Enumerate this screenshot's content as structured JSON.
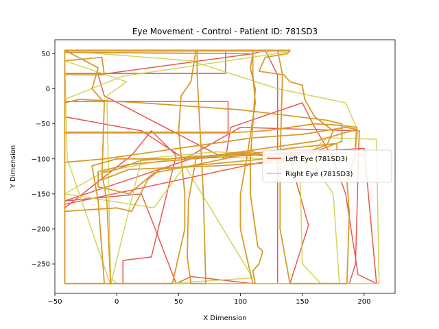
{
  "chart_data": {
    "type": "line",
    "title": "Eye Movement - Control - Patient ID: 781SD3",
    "xlabel": "X Dimension",
    "ylabel": "Y Dimension",
    "xlim": [
      -50,
      225
    ],
    "ylim": [
      -292,
      70
    ],
    "xticks": [
      -50,
      0,
      50,
      100,
      150,
      200
    ],
    "yticks": [
      50,
      0,
      -50,
      -100,
      -150,
      -200,
      -250
    ],
    "grid": false,
    "legend_position": "center-right",
    "series": [
      {
        "name": "Left Eye (781SD3)",
        "color": "#e8443a",
        "points": [
          [
            -42,
            55
          ],
          [
            88,
            55
          ],
          [
            88,
            22
          ],
          [
            -42,
            22
          ],
          [
            -42,
            -18
          ],
          [
            90,
            -18
          ],
          [
            90,
            -62
          ],
          [
            -42,
            -62
          ],
          [
            -42,
            -165
          ],
          [
            135,
            -98
          ],
          [
            140,
            -100
          ],
          [
            155,
            -195
          ],
          [
            140,
            -278
          ],
          [
            -42,
            -278
          ],
          [
            -42,
            -170
          ],
          [
            12,
            -95
          ],
          [
            28,
            -60
          ],
          [
            48,
            -95
          ],
          [
            28,
            -240
          ],
          [
            5,
            -245
          ],
          [
            5,
            -278
          ],
          [
            110,
            -278
          ],
          [
            60,
            -268
          ],
          [
            48,
            -278
          ],
          [
            30,
            -195
          ],
          [
            20,
            -150
          ],
          [
            -42,
            -160
          ],
          [
            60,
            -100
          ],
          [
            200,
            -85
          ],
          [
            210,
            -278
          ],
          [
            195,
            -265
          ],
          [
            185,
            -150
          ],
          [
            175,
            -100
          ],
          [
            160,
            -55
          ],
          [
            150,
            -20
          ],
          [
            92,
            -55
          ],
          [
            88,
            -100
          ],
          [
            -10,
            -10
          ],
          [
            -15,
            20
          ],
          [
            110,
            50
          ],
          [
            120,
            55
          ],
          [
            130,
            20
          ],
          [
            130,
            -278
          ],
          [
            188,
            -278
          ],
          [
            193,
            -250
          ],
          [
            196,
            -60
          ],
          [
            100,
            -55
          ],
          [
            55,
            -100
          ],
          [
            20,
            -60
          ],
          [
            -42,
            -40
          ]
        ]
      },
      {
        "name": "Right Eye (781SD3)",
        "color": "#cfcf45",
        "points": [
          [
            -42,
            53
          ],
          [
            140,
            53
          ],
          [
            5,
            18
          ],
          [
            -42,
            -15
          ],
          [
            -42,
            -105
          ],
          [
            -42,
            -278
          ],
          [
            165,
            -278
          ],
          [
            150,
            -250
          ],
          [
            148,
            -105
          ],
          [
            170,
            -70
          ],
          [
            210,
            -72
          ],
          [
            212,
            -278
          ],
          [
            180,
            -278
          ],
          [
            175,
            -150
          ],
          [
            160,
            -110
          ],
          [
            120,
            -100
          ],
          [
            60,
            -95
          ],
          [
            -10,
            -118
          ],
          [
            -42,
            -150
          ],
          [
            30,
            -170
          ],
          [
            55,
            -110
          ],
          [
            110,
            -270
          ],
          [
            40,
            -278
          ],
          [
            0,
            -278
          ],
          [
            -5,
            -270
          ],
          [
            -8,
            -10
          ],
          [
            8,
            10
          ],
          [
            -42,
            40
          ],
          [
            -40,
            -100
          ],
          [
            -5,
            -280
          ],
          [
            20,
            -100
          ],
          [
            80,
            -90
          ],
          [
            140,
            -95
          ],
          [
            192,
            -100
          ],
          [
            195,
            -60
          ],
          [
            185,
            -20
          ],
          [
            130,
            0
          ],
          [
            60,
            40
          ],
          [
            -42,
            54
          ]
        ]
      },
      {
        "name": "",
        "color": "#d89a28",
        "points": [
          [
            -42,
            55
          ],
          [
            140,
            55
          ],
          [
            138,
            50
          ],
          [
            120,
            45
          ],
          [
            115,
            25
          ],
          [
            135,
            20
          ],
          [
            140,
            10
          ],
          [
            150,
            5
          ],
          [
            152,
            -15
          ],
          [
            160,
            -40
          ],
          [
            175,
            -60
          ],
          [
            170,
            -80
          ],
          [
            140,
            -100
          ],
          [
            100,
            -92
          ],
          [
            60,
            -100
          ],
          [
            10,
            -108
          ],
          [
            -15,
            -118
          ],
          [
            -15,
            -140
          ],
          [
            10,
            -150
          ],
          [
            30,
            -120
          ],
          [
            60,
            -110
          ],
          [
            100,
            -95
          ],
          [
            140,
            -85
          ],
          [
            178,
            -78
          ],
          [
            178,
            -100
          ],
          [
            130,
            -105
          ],
          [
            80,
            -110
          ],
          [
            10,
            -115
          ],
          [
            -12,
            -130
          ],
          [
            -10,
            -20
          ],
          [
            -20,
            0
          ],
          [
            -15,
            30
          ],
          [
            -42,
            55
          ],
          [
            -42,
            20
          ],
          [
            -10,
            20
          ],
          [
            -12,
            45
          ],
          [
            -42,
            40
          ],
          [
            -42,
            -175
          ],
          [
            0,
            -170
          ],
          [
            12,
            -175
          ],
          [
            25,
            -130
          ],
          [
            35,
            -115
          ],
          [
            60,
            -110
          ],
          [
            120,
            -100
          ],
          [
            160,
            -90
          ],
          [
            182,
            -75
          ],
          [
            182,
            -50
          ],
          [
            170,
            -45
          ],
          [
            100,
            -30
          ],
          [
            60,
            -25
          ],
          [
            20,
            -20
          ],
          [
            -30,
            -15
          ],
          [
            -42,
            -20
          ],
          [
            -42,
            -63
          ],
          [
            90,
            -63
          ],
          [
            120,
            -60
          ],
          [
            160,
            -50
          ],
          [
            180,
            -52
          ],
          [
            194,
            -55
          ],
          [
            192,
            -100
          ],
          [
            186,
            -130
          ],
          [
            188,
            -178
          ],
          [
            186,
            -278
          ],
          [
            140,
            -278
          ],
          [
            132,
            -200
          ],
          [
            132,
            -100
          ],
          [
            134,
            20
          ],
          [
            130,
            55
          ],
          [
            100,
            55
          ],
          [
            65,
            55
          ],
          [
            65,
            20
          ],
          [
            68,
            -80
          ],
          [
            70,
            -150
          ],
          [
            72,
            -278
          ],
          [
            60,
            -278
          ],
          [
            57,
            -240
          ],
          [
            58,
            -160
          ],
          [
            62,
            -120
          ],
          [
            64,
            -100
          ],
          [
            80,
            -95
          ],
          [
            110,
            -90
          ],
          [
            115,
            -92
          ],
          [
            60,
            -98
          ],
          [
            20,
            -102
          ],
          [
            0,
            -115
          ],
          [
            -12,
            -120
          ],
          [
            -8,
            -160
          ],
          [
            -5,
            -278
          ],
          [
            -42,
            -278
          ],
          [
            -42,
            -105
          ],
          [
            -10,
            -100
          ],
          [
            30,
            -90
          ],
          [
            70,
            -80
          ],
          [
            110,
            -70
          ],
          [
            150,
            -65
          ],
          [
            185,
            -55
          ],
          [
            194,
            -58
          ],
          [
            160,
            -75
          ],
          [
            120,
            -85
          ],
          [
            80,
            -95
          ],
          [
            40,
            -100
          ],
          [
            0,
            -100
          ],
          [
            -20,
            -110
          ],
          [
            -15,
            -160
          ],
          [
            -10,
            -278
          ],
          [
            45,
            -278
          ],
          [
            55,
            -200
          ],
          [
            55,
            -150
          ],
          [
            50,
            -60
          ],
          [
            52,
            -10
          ],
          [
            60,
            10
          ],
          [
            64,
            55
          ],
          [
            110,
            55
          ],
          [
            110,
            20
          ],
          [
            112,
            -20
          ],
          [
            105,
            -100
          ],
          [
            100,
            -150
          ],
          [
            100,
            -200
          ],
          [
            105,
            -240
          ],
          [
            110,
            -278
          ],
          [
            112,
            -278
          ],
          [
            110,
            -260
          ],
          [
            115,
            -250
          ],
          [
            118,
            -232
          ],
          [
            114,
            -225
          ],
          [
            112,
            -200
          ],
          [
            108,
            -150
          ],
          [
            108,
            -100
          ],
          [
            110,
            -50
          ],
          [
            112,
            0
          ],
          [
            108,
            30
          ],
          [
            110,
            50
          ],
          [
            -42,
            52
          ]
        ]
      }
    ],
    "legend": [
      {
        "label": "Left Eye (781SD3)",
        "color": "#e8443a"
      },
      {
        "label": "Right Eye (781SD3)",
        "color": "#cfcf45"
      }
    ]
  }
}
